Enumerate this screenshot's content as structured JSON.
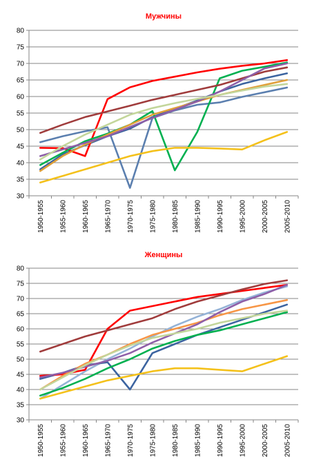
{
  "chart_data": [
    {
      "type": "line",
      "title": "Мужчины",
      "xlabel": "",
      "ylabel": "",
      "ylim": [
        30,
        80
      ],
      "yticks": [
        30,
        35,
        40,
        45,
        50,
        55,
        60,
        65,
        70,
        75,
        80
      ],
      "grid": true,
      "legend": "none",
      "categories": [
        "1950-1955",
        "1955-1960",
        "1960-1965",
        "1965-1970",
        "1970-1975",
        "1975-1980",
        "1980-1985",
        "1985-1990",
        "1990-1995",
        "1995-2000",
        "2000-2005",
        "2005-2010"
      ],
      "series": [
        {
          "color": "#5b7faf",
          "values": [
            46.2,
            48.0,
            49.5,
            50.7,
            32.4,
            53.5,
            55.8,
            57.5,
            58.2,
            59.9,
            61.3,
            62.7
          ]
        },
        {
          "color": "#3c64a0",
          "values": [
            38.0,
            42.5,
            45.3,
            48.0,
            50.3,
            53.8,
            56.3,
            58.8,
            61.5,
            63.8,
            65.5,
            67.0
          ]
        },
        {
          "color": "#ff0000",
          "values": [
            44.5,
            44.4,
            42.0,
            59.2,
            62.8,
            64.7,
            66.0,
            67.3,
            68.4,
            69.3,
            70.0,
            71.0
          ]
        },
        {
          "color": "#00b050",
          "values": [
            39.3,
            43.0,
            46.5,
            48.8,
            51.5,
            55.6,
            37.7,
            49.3,
            65.5,
            67.8,
            69.0,
            70.3
          ]
        },
        {
          "color": "#e0a03a",
          "values": [
            37.5,
            42.0,
            45.5,
            48.5,
            51.5,
            54.5,
            56.5,
            58.5,
            60.5,
            62.0,
            63.5,
            65.0
          ]
        },
        {
          "color": "#f4c11b",
          "values": [
            34.0,
            36.0,
            38.0,
            40.0,
            42.0,
            43.5,
            44.5,
            44.5,
            44.3,
            44.0,
            46.8,
            49.3
          ]
        },
        {
          "color": "#a03c3c",
          "values": [
            49.0,
            51.5,
            53.8,
            55.5,
            57.2,
            59.0,
            60.5,
            62.0,
            63.5,
            65.5,
            67.5,
            68.8
          ]
        },
        {
          "color": "#8e5fa8",
          "values": [
            42.0,
            44.0,
            46.0,
            48.0,
            50.8,
            53.5,
            56.0,
            58.5,
            61.5,
            65.0,
            68.5,
            70.0
          ]
        },
        {
          "color": "#c3d69b",
          "values": [
            41.0,
            45.0,
            48.5,
            51.5,
            54.5,
            56.5,
            58.0,
            59.3,
            60.5,
            61.8,
            63.0,
            63.8
          ]
        }
      ]
    },
    {
      "type": "line",
      "title": "Женщины",
      "xlabel": "",
      "ylabel": "",
      "ylim": [
        30,
        80
      ],
      "yticks": [
        30,
        35,
        40,
        45,
        50,
        55,
        60,
        65,
        70,
        75,
        80
      ],
      "grid": true,
      "legend": "none",
      "categories": [
        "1950-1955",
        "1955-1960",
        "1960-1965",
        "1965-1970",
        "1970-1975",
        "1975-1980",
        "1980-1985",
        "1985-1990",
        "1990-1995",
        "1995-2000",
        "2000-2005",
        "2005-2010"
      ],
      "series": [
        {
          "color": "#95b3d7",
          "values": [
            37.0,
            41.5,
            46.0,
            50.0,
            53.5,
            57.5,
            61.0,
            64.0,
            66.5,
            69.5,
            72.0,
            74.0
          ]
        },
        {
          "color": "#3c64a0",
          "values": [
            43.5,
            45.5,
            48.0,
            49.0,
            40.0,
            52.0,
            55.0,
            58.0,
            60.5,
            63.0,
            65.5,
            68.0
          ]
        },
        {
          "color": "#ff0000",
          "values": [
            44.5,
            45.0,
            46.5,
            60.0,
            66.0,
            67.5,
            69.0,
            70.5,
            71.5,
            72.5,
            73.5,
            74.5
          ]
        },
        {
          "color": "#00b050",
          "values": [
            38.0,
            40.5,
            43.5,
            47.0,
            50.0,
            53.5,
            56.0,
            58.0,
            59.5,
            61.5,
            63.5,
            65.5
          ]
        },
        {
          "color": "#f79646",
          "values": [
            40.0,
            44.5,
            48.5,
            51.5,
            55.0,
            58.0,
            60.0,
            62.0,
            64.5,
            66.5,
            68.0,
            69.5
          ]
        },
        {
          "color": "#f4c11b",
          "values": [
            37.0,
            39.0,
            41.0,
            43.0,
            44.5,
            46.0,
            47.0,
            47.0,
            46.5,
            46.0,
            48.5,
            51.0
          ]
        },
        {
          "color": "#a03c3c",
          "values": [
            52.5,
            55.0,
            57.5,
            59.5,
            61.5,
            63.5,
            66.5,
            69.0,
            71.0,
            73.0,
            74.8,
            76.0
          ]
        },
        {
          "color": "#8e5fa8",
          "values": [
            44.0,
            45.5,
            47.5,
            49.5,
            52.0,
            55.5,
            58.5,
            61.5,
            65.5,
            69.0,
            71.5,
            74.5
          ]
        },
        {
          "color": "#c3d69b",
          "values": [
            40.0,
            44.0,
            48.0,
            51.5,
            54.5,
            57.0,
            58.5,
            60.0,
            62.0,
            63.5,
            65.0,
            66.0
          ]
        }
      ]
    }
  ]
}
